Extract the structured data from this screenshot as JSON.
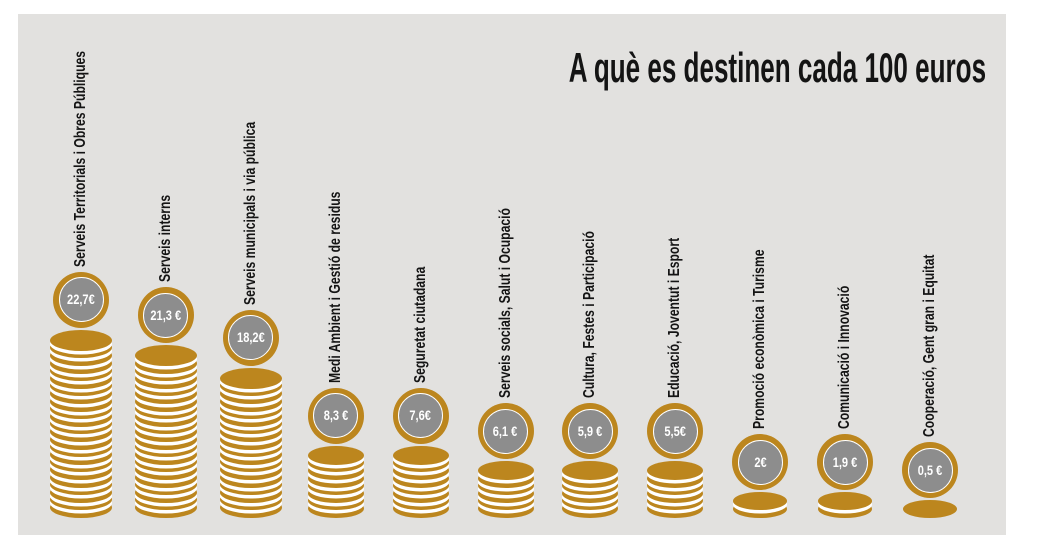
{
  "title": "A què es destinen cada 100 euros",
  "colors": {
    "page_bg": "#ffffff",
    "panel_bg": "#e2e1df",
    "coin_gold": "#bc861e",
    "coin_face_gray": "#8d8d8d",
    "coin_separator": "#ffffff",
    "coin_value_text": "#ffffff",
    "label_text": "#141414"
  },
  "chart_data": {
    "type": "bar",
    "variant": "coin-stack-pictogram",
    "title": "A què es destinen cada 100 euros",
    "total": 100,
    "categories": [
      "Serveis Territorials i Obres Públiques",
      "Serveis interns",
      "Serveis municipals i via pública",
      "Medi Ambient i Gestió de residus",
      "Seguretat ciutadana",
      "Serveis socials, Salut i Ocupació",
      "Cultura, Festes i Participació",
      "Educació, Joventut i Esport",
      "Promoció econòmica i Turisme",
      "Comunicació i Innovació",
      "Cooperació, Gent gran i Equitat"
    ],
    "values": [
      22.7,
      21.3,
      18.2,
      8.3,
      7.6,
      6.1,
      5.9,
      5.5,
      2,
      1.9,
      0.5
    ],
    "value_labels": [
      "22,7€",
      "21,3 €",
      "18,2€",
      "8,3 €",
      "7,6€",
      "6,1 €",
      "5,9 €",
      "5,5€",
      "2€",
      "1,9 €",
      "0,5 €"
    ],
    "coin_counts": [
      23,
      21,
      18,
      8,
      8,
      6,
      6,
      6,
      2,
      2,
      1
    ],
    "xlabel": "",
    "ylabel": "",
    "ylim": [
      0,
      25
    ],
    "grid": false,
    "legend": "none"
  }
}
